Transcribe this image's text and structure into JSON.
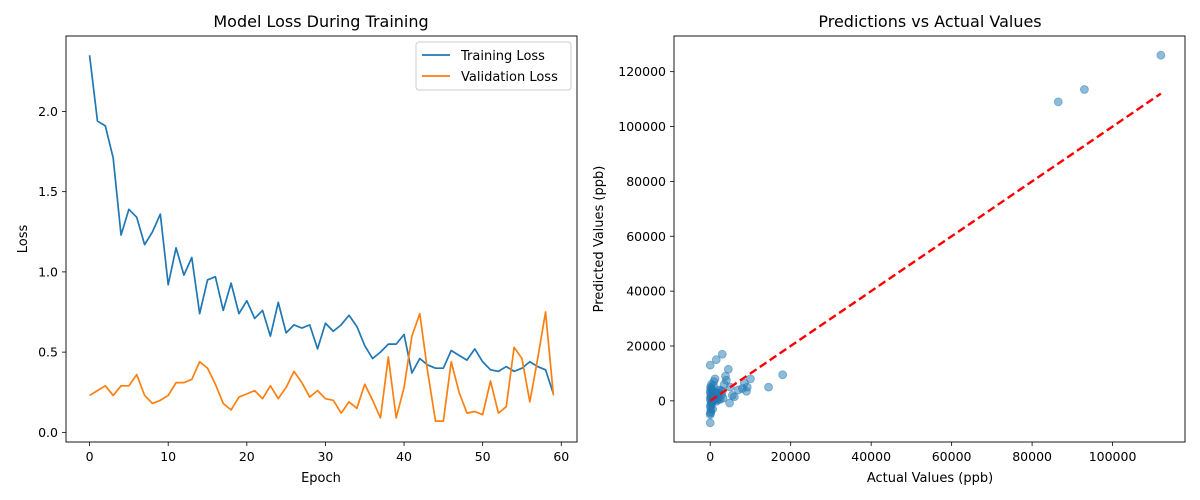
{
  "chart_data": [
    {
      "type": "line",
      "title": "Model Loss During Training",
      "xlabel": "Epoch",
      "ylabel": "Loss",
      "xlim": [
        -3,
        62
      ],
      "ylim": [
        -0.06,
        2.47
      ],
      "xticks": [
        0,
        10,
        20,
        30,
        40,
        50,
        60
      ],
      "yticks": [
        0.0,
        0.5,
        1.0,
        1.5,
        2.0
      ],
      "ytick_labels": [
        "0.0",
        "0.5",
        "1.0",
        "1.5",
        "2.0"
      ],
      "grid": false,
      "legend": "top-right",
      "x": [
        0,
        1,
        2,
        3,
        4,
        5,
        6,
        7,
        8,
        9,
        10,
        11,
        12,
        13,
        14,
        15,
        16,
        17,
        18,
        19,
        20,
        21,
        22,
        23,
        24,
        25,
        26,
        27,
        28,
        29,
        30,
        31,
        32,
        33,
        34,
        35,
        36,
        37,
        38,
        39,
        40,
        41,
        42,
        43,
        44,
        45,
        46,
        47,
        48,
        49,
        50,
        51,
        52,
        53,
        54,
        55,
        56,
        57,
        58,
        59
      ],
      "series": [
        {
          "name": "Training Loss",
          "color": "#1f77b4",
          "values": [
            2.35,
            1.94,
            1.91,
            1.71,
            1.23,
            1.39,
            1.34,
            1.17,
            1.25,
            1.36,
            0.92,
            1.15,
            0.98,
            1.09,
            0.74,
            0.95,
            0.97,
            0.76,
            0.93,
            0.74,
            0.82,
            0.71,
            0.76,
            0.6,
            0.81,
            0.62,
            0.67,
            0.65,
            0.67,
            0.52,
            0.68,
            0.63,
            0.67,
            0.73,
            0.66,
            0.54,
            0.46,
            0.5,
            0.55,
            0.55,
            0.61,
            0.37,
            0.46,
            0.42,
            0.4,
            0.4,
            0.51,
            0.48,
            0.45,
            0.52,
            0.44,
            0.39,
            0.38,
            0.41,
            0.38,
            0.4,
            0.44,
            0.41,
            0.39,
            0.24
          ]
        },
        {
          "name": "Validation Loss",
          "color": "#ff7f0e",
          "values": [
            0.23,
            0.26,
            0.29,
            0.23,
            0.29,
            0.29,
            0.36,
            0.23,
            0.18,
            0.2,
            0.23,
            0.31,
            0.31,
            0.33,
            0.44,
            0.4,
            0.3,
            0.18,
            0.14,
            0.22,
            0.24,
            0.26,
            0.21,
            0.29,
            0.21,
            0.28,
            0.38,
            0.31,
            0.22,
            0.26,
            0.21,
            0.2,
            0.12,
            0.19,
            0.15,
            0.3,
            0.2,
            0.09,
            0.47,
            0.09,
            0.28,
            0.6,
            0.74,
            0.38,
            0.07,
            0.07,
            0.44,
            0.25,
            0.12,
            0.13,
            0.11,
            0.32,
            0.12,
            0.16,
            0.53,
            0.46,
            0.19,
            0.46,
            0.75,
            0.23
          ]
        }
      ]
    },
    {
      "type": "scatter",
      "title": "Predictions vs Actual Values",
      "xlabel": "Actual Values (ppb)",
      "ylabel": "Predicted Values (ppb)",
      "xlim": [
        -9000,
        118000
      ],
      "ylim": [
        -15000,
        133000
      ],
      "xticks": [
        0,
        20000,
        40000,
        60000,
        80000,
        100000
      ],
      "yticks": [
        0,
        20000,
        40000,
        60000,
        80000,
        100000,
        120000
      ],
      "grid": false,
      "point_color": "#1f77b4",
      "reference_line": {
        "color": "#ff0000",
        "style": "dashed",
        "from": [
          0,
          0
        ],
        "to": [
          112000,
          112000
        ]
      },
      "points": [
        [
          0,
          -8000
        ],
        [
          0,
          -5000
        ],
        [
          100,
          -4000
        ],
        [
          200,
          -3000
        ],
        [
          0,
          -2000
        ],
        [
          300,
          -1000
        ],
        [
          100,
          0
        ],
        [
          400,
          500
        ],
        [
          0,
          1000
        ],
        [
          200,
          1500
        ],
        [
          600,
          2000
        ],
        [
          100,
          2500
        ],
        [
          300,
          3000
        ],
        [
          0,
          3500
        ],
        [
          500,
          4000
        ],
        [
          200,
          4500
        ],
        [
          100,
          5000
        ],
        [
          800,
          5500
        ],
        [
          400,
          -500
        ],
        [
          1000,
          200
        ],
        [
          1200,
          800
        ],
        [
          1500,
          -200
        ],
        [
          2000,
          1200
        ],
        [
          1800,
          2800
        ],
        [
          2500,
          600
        ],
        [
          300,
          6000
        ],
        [
          900,
          7000
        ],
        [
          1200,
          8000
        ],
        [
          0,
          13000
        ],
        [
          1500,
          15000
        ],
        [
          3000,
          17000
        ],
        [
          3500,
          6000
        ],
        [
          2200,
          4000
        ],
        [
          2800,
          2200
        ],
        [
          3000,
          3500
        ],
        [
          4000,
          7500
        ],
        [
          4500,
          11500
        ],
        [
          3800,
          9000
        ],
        [
          5000,
          5000
        ],
        [
          4800,
          -800
        ],
        [
          5500,
          2000
        ],
        [
          6000,
          1500
        ],
        [
          7000,
          4000
        ],
        [
          8000,
          4500
        ],
        [
          8500,
          6500
        ],
        [
          9000,
          3500
        ],
        [
          9200,
          5000
        ],
        [
          10000,
          8000
        ],
        [
          14500,
          5000
        ],
        [
          18000,
          9500
        ],
        [
          600,
          -3000
        ],
        [
          700,
          200
        ],
        [
          1600,
          3000
        ],
        [
          2600,
          3800
        ],
        [
          3200,
          1000
        ],
        [
          200,
          -1500
        ],
        [
          100,
          -4500
        ],
        [
          900,
          1800
        ],
        [
          1300,
          2600
        ],
        [
          2000,
          300
        ],
        [
          86500,
          109000
        ],
        [
          93000,
          113500
        ],
        [
          112000,
          126000
        ]
      ]
    }
  ]
}
